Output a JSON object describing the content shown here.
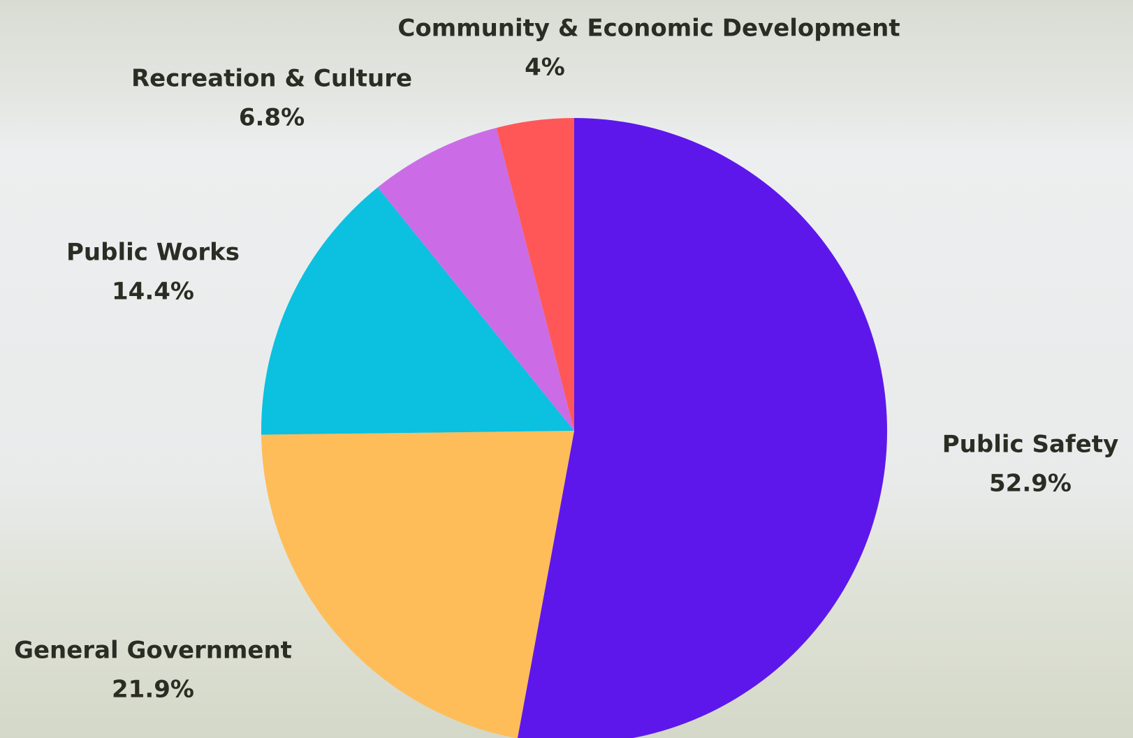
{
  "chart_data": {
    "type": "pie",
    "categories": [
      "Public Safety",
      "General Government",
      "Public Works",
      "Recreation & Culture",
      "Community & Economic Development"
    ],
    "values": [
      52.9,
      21.9,
      14.4,
      6.8,
      4
    ],
    "value_labels": [
      "52.9%",
      "21.9%",
      "14.4%",
      "6.8%",
      "4%"
    ],
    "colors": [
      "#5e17eb",
      "#ffbd59",
      "#0cc0df",
      "#cb6ce6",
      "#ff5757"
    ]
  }
}
